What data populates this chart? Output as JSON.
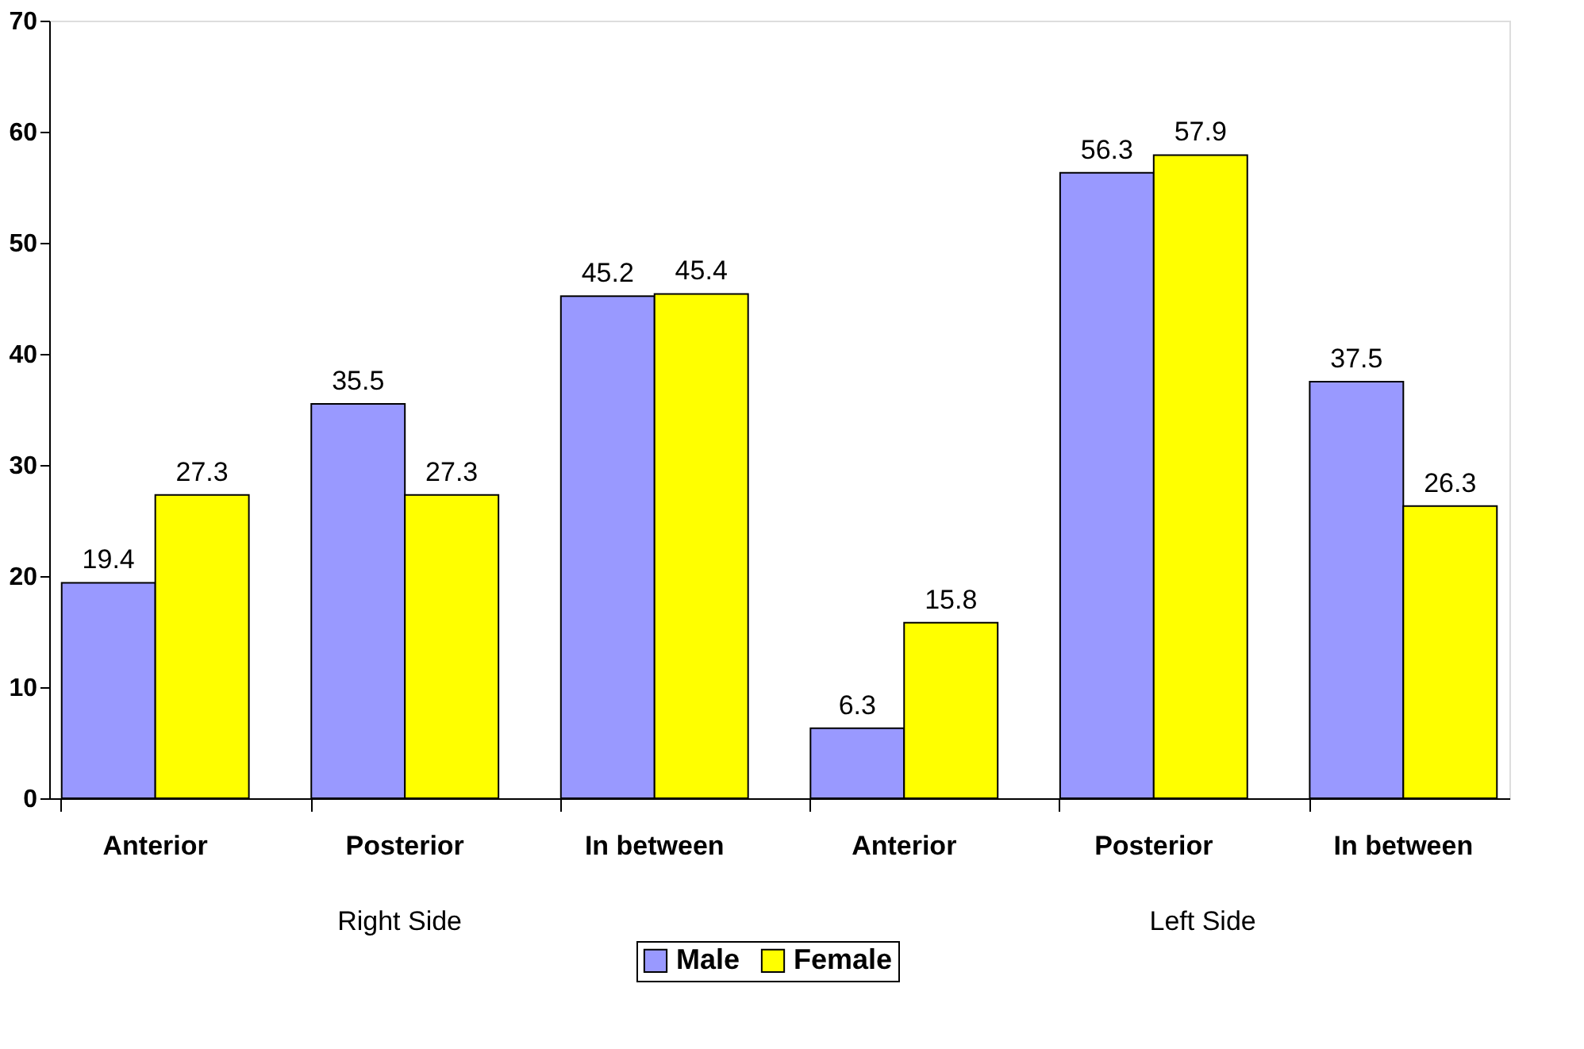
{
  "chart_data": {
    "type": "bar",
    "categories": [
      "Anterior",
      "Posterior",
      "In between",
      null,
      "Anterior",
      "Posterior",
      "In between"
    ],
    "series": [
      {
        "name": "Male",
        "color": "#9999ff",
        "values": [
          19.4,
          35.5,
          45.2,
          null,
          6.3,
          56.3,
          37.5
        ]
      },
      {
        "name": "Female",
        "color": "#ffff00",
        "values": [
          27.3,
          27.3,
          45.4,
          null,
          15.8,
          57.9,
          26.3
        ]
      }
    ],
    "ylim": [
      0,
      70
    ],
    "yticks": [
      0,
      10,
      20,
      30,
      40,
      50,
      60,
      70
    ],
    "grid": false,
    "legend": "bottom",
    "data_labels": true,
    "annotations": [
      "Right Side",
      "Left Side"
    ]
  }
}
